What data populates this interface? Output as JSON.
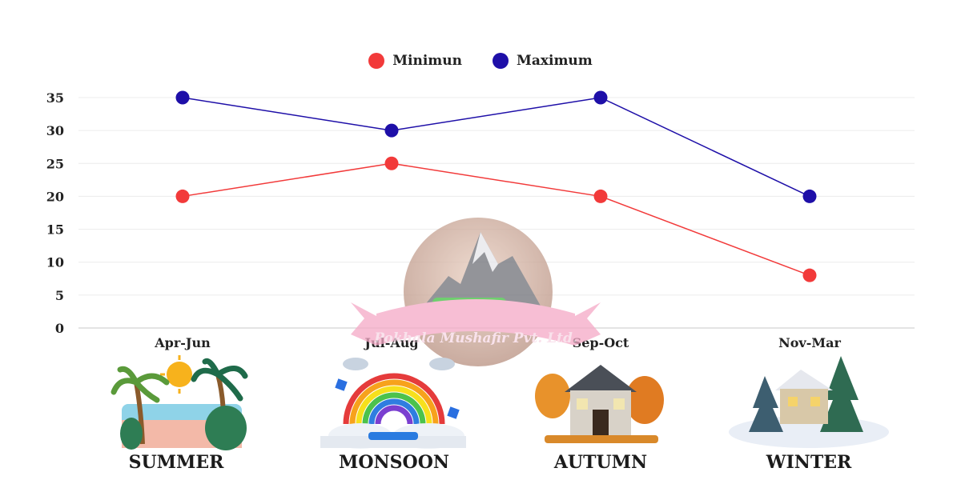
{
  "chart_data": {
    "type": "line",
    "categories": [
      "Apr-Jun",
      "Jul-Aug",
      "Sep-Oct",
      "Nov-Mar"
    ],
    "series": [
      {
        "name": "Minimun",
        "values": [
          20,
          25,
          20,
          8
        ],
        "color": "#f23a3a"
      },
      {
        "name": "Maximum",
        "values": [
          35,
          30,
          35,
          20
        ],
        "color": "#1e0fa8"
      }
    ],
    "yticks": [
      0,
      5,
      10,
      15,
      20,
      25,
      30,
      35
    ],
    "ylim": [
      0,
      35
    ],
    "grid": true,
    "legend_position": "top-center"
  },
  "seasons": [
    {
      "label": "SUMMER",
      "icon": "summer-palm-beach-icon"
    },
    {
      "label": "MONSOON",
      "icon": "rainbow-cloud-icon"
    },
    {
      "label": "AUTUMN",
      "icon": "autumn-house-icon"
    },
    {
      "label": "WINTER",
      "icon": "snowy-cabin-icon"
    }
  ],
  "watermark": {
    "text": "Pokhala Mushafir Pvt. Ltd.",
    "icon": "mountain-bus-logo-icon"
  }
}
